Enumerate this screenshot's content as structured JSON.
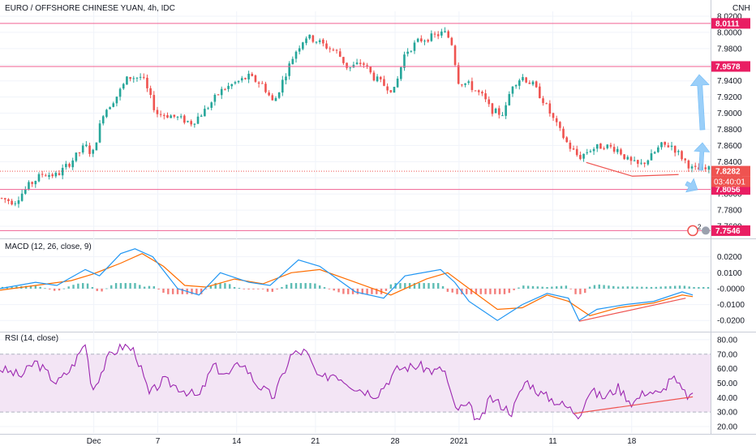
{
  "header": {
    "title": "EURO / OFFSHORE CHINESE YUAN, 4h, IDC",
    "currency": "CNH"
  },
  "colors": {
    "up": "#26a69a",
    "down": "#ef5350",
    "hline": "#f06292",
    "macd_line": "#2196f3",
    "signal_line": "#ff6d00",
    "rsi_line": "#9c27b0",
    "rsi_band": "#f3e5f5",
    "arrow": "#90caf9",
    "grid": "#f0f3fa",
    "axis_text": "#131722"
  },
  "chart_data": [
    {
      "type": "candlestick",
      "name": "price",
      "title": "EURO / OFFSHORE CHINESE YUAN, 4h, IDC",
      "ylim": [
        7.746,
        8.026
      ],
      "y_ticks": [
        "8.0200",
        "8.0000",
        "7.9800",
        "7.9600",
        "7.9400",
        "7.9200",
        "7.9000",
        "7.8800",
        "7.8600",
        "7.8400",
        "7.8200",
        "7.8000",
        "7.7800",
        "7.7600"
      ],
      "x_ticks": [
        "Dec",
        "7",
        "14",
        "21",
        "28",
        "2021",
        "11",
        "18"
      ],
      "x_tick_pos": [
        0.132,
        0.222,
        0.333,
        0.444,
        0.556,
        0.646,
        0.778,
        0.889
      ],
      "path": [
        [
          0.0,
          7.795
        ],
        [
          0.02,
          7.79
        ],
        [
          0.04,
          7.81
        ],
        [
          0.06,
          7.825
        ],
        [
          0.08,
          7.823
        ],
        [
          0.1,
          7.84
        ],
        [
          0.12,
          7.86
        ],
        [
          0.13,
          7.848
        ],
        [
          0.145,
          7.9
        ],
        [
          0.165,
          7.922
        ],
        [
          0.18,
          7.944
        ],
        [
          0.2,
          7.945
        ],
        [
          0.22,
          7.9
        ],
        [
          0.24,
          7.897
        ],
        [
          0.27,
          7.888
        ],
        [
          0.29,
          7.905
        ],
        [
          0.31,
          7.927
        ],
        [
          0.33,
          7.937
        ],
        [
          0.35,
          7.945
        ],
        [
          0.37,
          7.935
        ],
        [
          0.385,
          7.912
        ],
        [
          0.4,
          7.945
        ],
        [
          0.415,
          7.975
        ],
        [
          0.43,
          7.995
        ],
        [
          0.445,
          7.99
        ],
        [
          0.46,
          7.982
        ],
        [
          0.475,
          7.975
        ],
        [
          0.49,
          7.955
        ],
        [
          0.51,
          7.963
        ],
        [
          0.525,
          7.945
        ],
        [
          0.54,
          7.935
        ],
        [
          0.555,
          7.928
        ],
        [
          0.57,
          7.975
        ],
        [
          0.59,
          7.99
        ],
        [
          0.61,
          7.995
        ],
        [
          0.625,
          8.0
        ],
        [
          0.635,
          7.99
        ],
        [
          0.645,
          7.94
        ],
        [
          0.66,
          7.935
        ],
        [
          0.68,
          7.92
        ],
        [
          0.69,
          7.905
        ],
        [
          0.7,
          7.9
        ],
        [
          0.71,
          7.9
        ],
        [
          0.72,
          7.935
        ],
        [
          0.735,
          7.945
        ],
        [
          0.75,
          7.935
        ],
        [
          0.765,
          7.915
        ],
        [
          0.78,
          7.89
        ],
        [
          0.79,
          7.875
        ],
        [
          0.8,
          7.86
        ],
        [
          0.815,
          7.845
        ],
        [
          0.83,
          7.855
        ],
        [
          0.85,
          7.86
        ],
        [
          0.87,
          7.855
        ],
        [
          0.885,
          7.84
        ],
        [
          0.9,
          7.835
        ],
        [
          0.915,
          7.845
        ],
        [
          0.93,
          7.86
        ],
        [
          0.945,
          7.86
        ],
        [
          0.955,
          7.85
        ],
        [
          0.965,
          7.84
        ],
        [
          0.975,
          7.83
        ]
      ],
      "horizontal_levels": [
        {
          "value": 8.0111,
          "label": "8.0111"
        },
        {
          "value": 7.9578,
          "label": "7.9578"
        },
        {
          "value": 7.8056,
          "label": "7.8056"
        },
        {
          "value": 7.7546,
          "label": "7.7546"
        }
      ],
      "last_price": {
        "value": 7.8282,
        "label": "7.8282",
        "countdown": "03:40:01"
      },
      "alert_badge": "2",
      "trendlines": [
        {
          "points": [
            [
              0.825,
              7.839
            ],
            [
              0.89,
              7.822
            ],
            [
              0.955,
              7.824
            ]
          ]
        }
      ]
    },
    {
      "type": "line",
      "name": "macd",
      "label": "MACD (12, 26, close, 9)",
      "ylim": [
        -0.0265,
        0.0305
      ],
      "y_ticks": [
        "0.0200",
        "0.0100",
        "-0.0000",
        "-0.0100",
        "-0.0200"
      ],
      "series": [
        {
          "name": "macd",
          "points": [
            [
              0.0,
              0.0
            ],
            [
              0.05,
              0.004
            ],
            [
              0.08,
              0.002
            ],
            [
              0.12,
              0.012
            ],
            [
              0.14,
              0.008
            ],
            [
              0.17,
              0.022
            ],
            [
              0.19,
              0.025
            ],
            [
              0.215,
              0.02
            ],
            [
              0.25,
              0.0
            ],
            [
              0.28,
              -0.004
            ],
            [
              0.31,
              0.01
            ],
            [
              0.35,
              0.004
            ],
            [
              0.38,
              0.002
            ],
            [
              0.42,
              0.018
            ],
            [
              0.45,
              0.014
            ],
            [
              0.5,
              -0.002
            ],
            [
              0.54,
              -0.006
            ],
            [
              0.57,
              0.008
            ],
            [
              0.62,
              0.012
            ],
            [
              0.64,
              0.004
            ],
            [
              0.66,
              -0.008
            ],
            [
              0.7,
              -0.02
            ],
            [
              0.735,
              -0.01
            ],
            [
              0.77,
              -0.003
            ],
            [
              0.8,
              -0.006
            ],
            [
              0.815,
              -0.02
            ],
            [
              0.84,
              -0.013
            ],
            [
              0.88,
              -0.01
            ],
            [
              0.92,
              -0.008
            ],
            [
              0.96,
              -0.002
            ],
            [
              0.975,
              -0.004
            ]
          ]
        },
        {
          "name": "signal",
          "points": [
            [
              0.0,
              -0.001
            ],
            [
              0.05,
              0.002
            ],
            [
              0.1,
              0.005
            ],
            [
              0.13,
              0.009
            ],
            [
              0.17,
              0.016
            ],
            [
              0.2,
              0.022
            ],
            [
              0.23,
              0.014
            ],
            [
              0.26,
              0.002
            ],
            [
              0.29,
              0.001
            ],
            [
              0.33,
              0.006
            ],
            [
              0.37,
              0.003
            ],
            [
              0.41,
              0.01
            ],
            [
              0.45,
              0.012
            ],
            [
              0.5,
              0.004
            ],
            [
              0.55,
              -0.004
            ],
            [
              0.6,
              0.006
            ],
            [
              0.63,
              0.01
            ],
            [
              0.66,
              0.0
            ],
            [
              0.7,
              -0.013
            ],
            [
              0.735,
              -0.012
            ],
            [
              0.77,
              -0.004
            ],
            [
              0.8,
              -0.008
            ],
            [
              0.83,
              -0.017
            ],
            [
              0.87,
              -0.012
            ],
            [
              0.92,
              -0.009
            ],
            [
              0.96,
              -0.004
            ],
            [
              0.975,
              -0.005
            ]
          ]
        }
      ],
      "histogram": {
        "count": 150,
        "scale": 0.0035
      },
      "trendlines": [
        {
          "points": [
            [
              0.815,
              -0.0205
            ],
            [
              0.965,
              -0.006
            ]
          ]
        }
      ]
    },
    {
      "type": "line",
      "name": "rsi",
      "label": "RSI (14, close)",
      "ylim": [
        15.5,
        85.0
      ],
      "y_ticks": [
        "80.00",
        "70.00",
        "60.00",
        "50.00",
        "40.00",
        "30.00",
        "20.00"
      ],
      "band": [
        30,
        70
      ],
      "series": [
        {
          "name": "rsi",
          "points": [
            [
              0.0,
              60
            ],
            [
              0.03,
              55
            ],
            [
              0.05,
              65
            ],
            [
              0.08,
              50
            ],
            [
              0.1,
              60
            ],
            [
              0.12,
              78
            ],
            [
              0.13,
              45
            ],
            [
              0.155,
              70
            ],
            [
              0.175,
              76
            ],
            [
              0.19,
              72
            ],
            [
              0.21,
              42
            ],
            [
              0.23,
              52
            ],
            [
              0.26,
              45
            ],
            [
              0.28,
              40
            ],
            [
              0.3,
              62
            ],
            [
              0.32,
              55
            ],
            [
              0.34,
              65
            ],
            [
              0.36,
              50
            ],
            [
              0.385,
              40
            ],
            [
              0.41,
              70
            ],
            [
              0.43,
              72
            ],
            [
              0.45,
              52
            ],
            [
              0.47,
              57
            ],
            [
              0.5,
              47
            ],
            [
              0.53,
              42
            ],
            [
              0.56,
              60
            ],
            [
              0.59,
              62
            ],
            [
              0.61,
              58
            ],
            [
              0.625,
              60
            ],
            [
              0.64,
              32
            ],
            [
              0.66,
              34
            ],
            [
              0.675,
              22
            ],
            [
              0.69,
              40
            ],
            [
              0.72,
              30
            ],
            [
              0.74,
              52
            ],
            [
              0.76,
              43
            ],
            [
              0.78,
              38
            ],
            [
              0.8,
              33
            ],
            [
              0.815,
              28
            ],
            [
              0.83,
              45
            ],
            [
              0.85,
              40
            ],
            [
              0.87,
              47
            ],
            [
              0.89,
              36
            ],
            [
              0.91,
              45
            ],
            [
              0.93,
              42
            ],
            [
              0.945,
              55
            ],
            [
              0.955,
              48
            ],
            [
              0.965,
              42
            ],
            [
              0.975,
              40
            ]
          ]
        }
      ],
      "trendlines": [
        {
          "points": [
            [
              0.808,
              29.0
            ],
            [
              0.975,
              40.5
            ]
          ]
        }
      ]
    }
  ]
}
